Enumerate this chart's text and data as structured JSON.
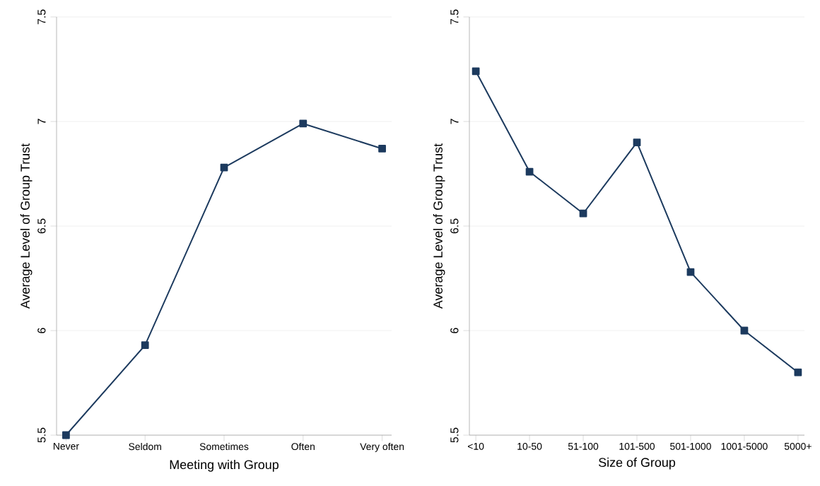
{
  "chart_data": [
    {
      "type": "line",
      "xlabel": "Meeting with Group",
      "ylabel": "Average Level of Group Trust",
      "categories": [
        "Never",
        "Seldom",
        "Sometimes",
        "Often",
        "Very often"
      ],
      "values": [
        5.5,
        5.93,
        6.78,
        6.99,
        6.87
      ],
      "color": "#1c3a5e",
      "ylim": [
        5.5,
        7.5
      ],
      "yticks": [
        5.5,
        6,
        6.5,
        7,
        7.5
      ],
      "grid": "y",
      "marker": "square"
    },
    {
      "type": "line",
      "xlabel": "Size of Group",
      "ylabel": "Average Level of Group Trust",
      "categories": [
        "<10",
        "10-50",
        "51-100",
        "101-500",
        "501-1000",
        "1001-5000",
        "5000+"
      ],
      "values": [
        7.24,
        6.76,
        6.56,
        6.9,
        6.28,
        6.0,
        5.8
      ],
      "color": "#1c3a5e",
      "ylim": [
        5.5,
        7.5
      ],
      "yticks": [
        5.5,
        6,
        6.5,
        7,
        7.5
      ],
      "grid": "y",
      "marker": "square"
    }
  ]
}
